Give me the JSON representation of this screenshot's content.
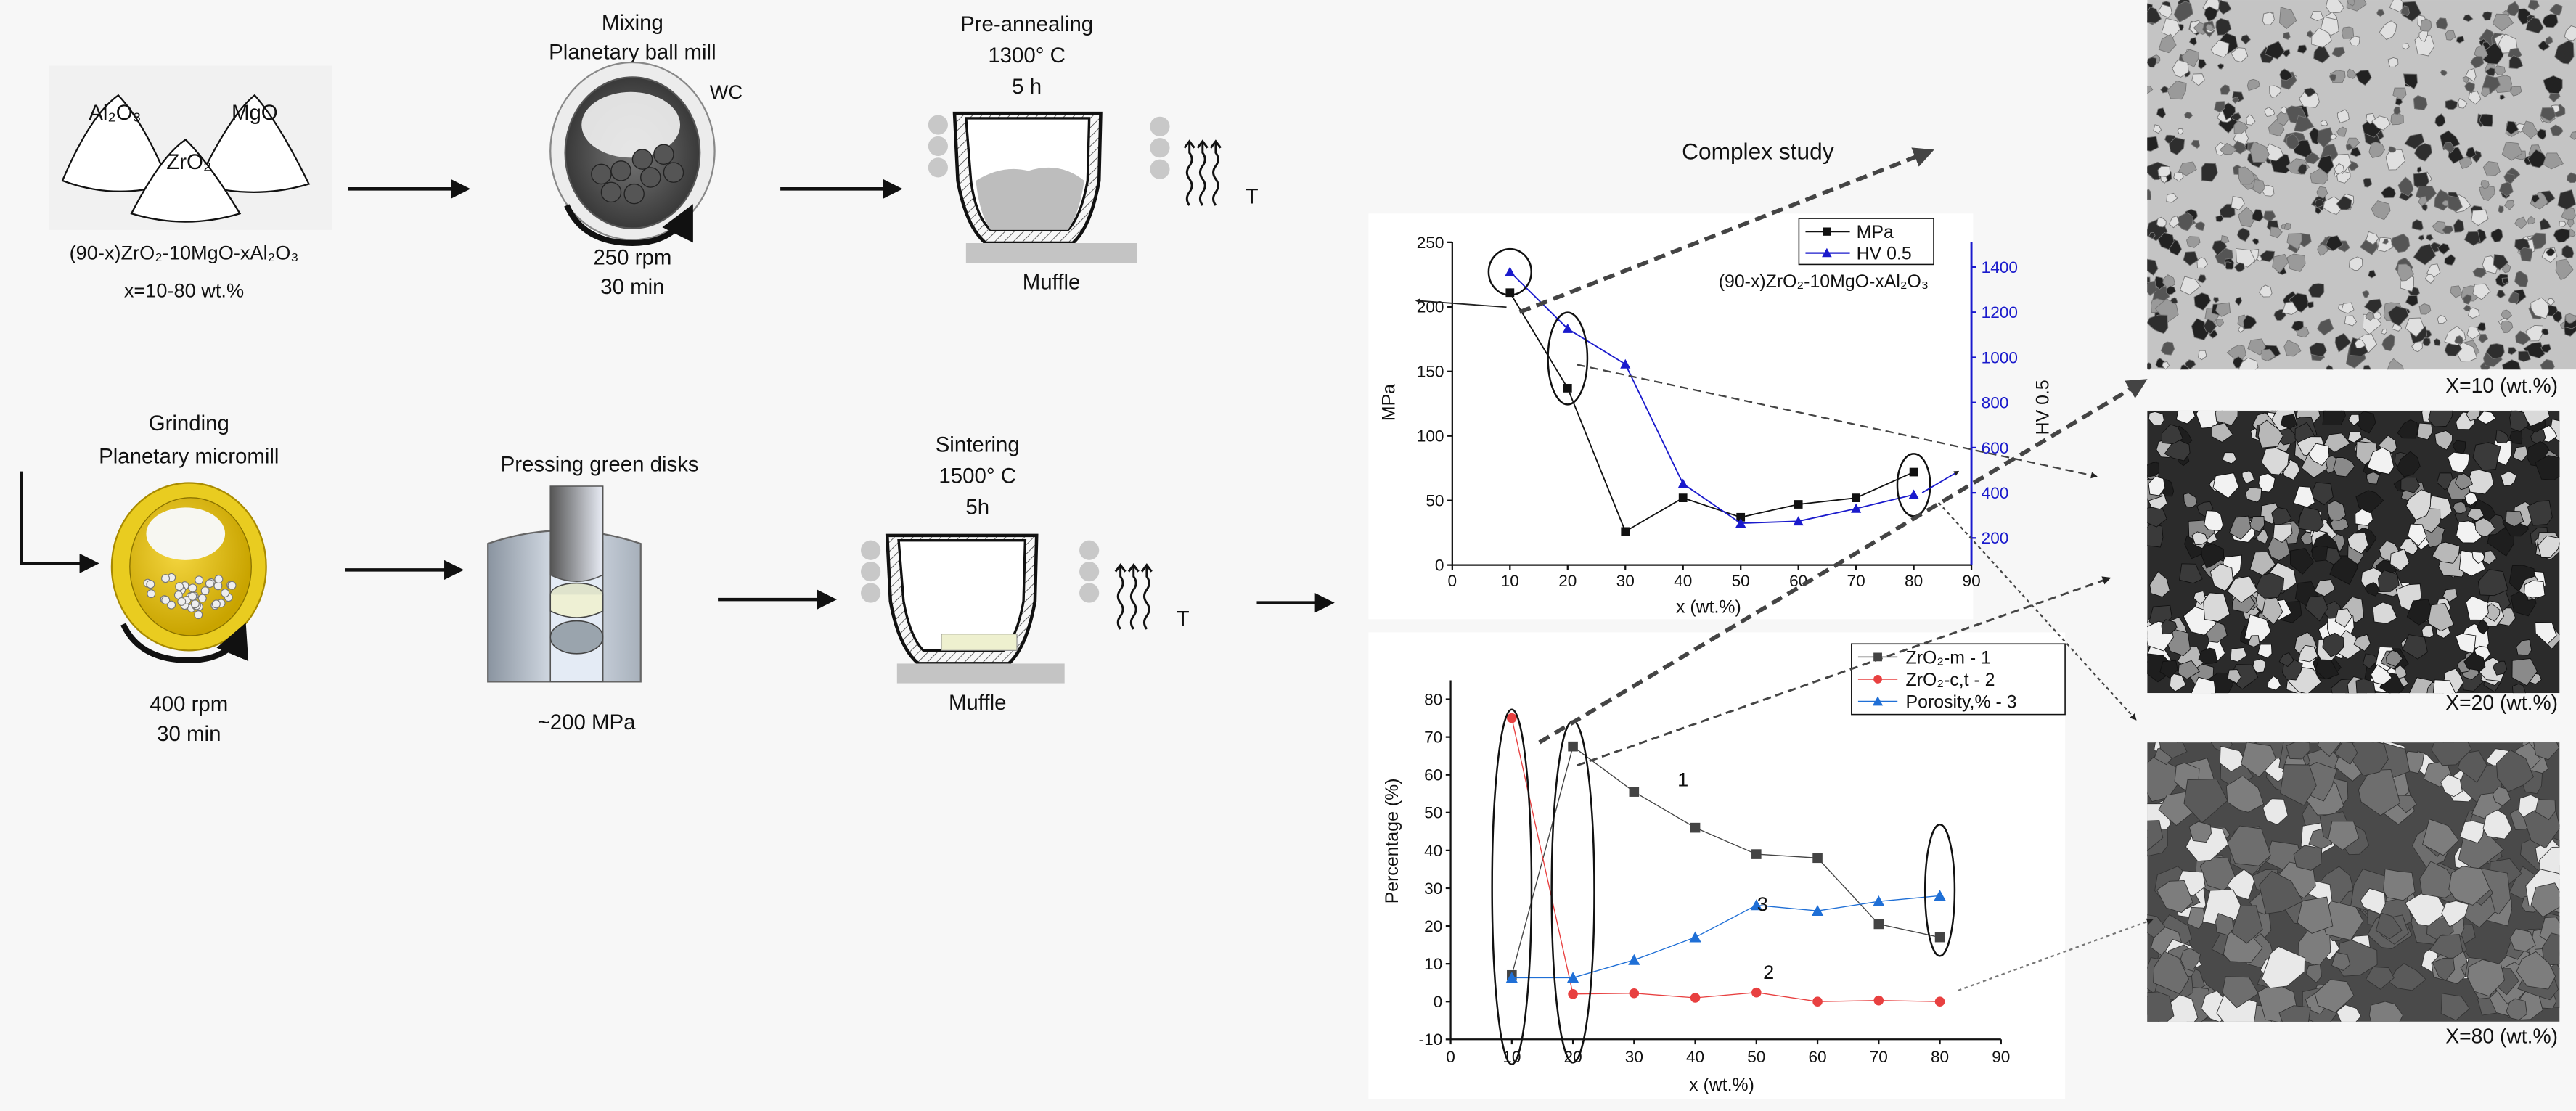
{
  "process": {
    "powders": {
      "al2o3": "Al₂O₃",
      "mgo": "MgO",
      "zro2": "ZrO₂",
      "formula": "(90-x)ZrO₂-10MgO-xAl₂O₃",
      "range": "x=10-80 wt.%"
    },
    "mixing": {
      "title": "Mixing",
      "device": "Planetary ball mill",
      "jar": "WC",
      "speed": "250 rpm",
      "time": "30 min"
    },
    "preannealing": {
      "title": "Pre-annealing",
      "temperature": "1300° C",
      "time": "5 h",
      "furnace": "Muffle",
      "heat": "T"
    },
    "grinding": {
      "title": "Grinding",
      "device": "Planetary micromill",
      "speed": "400 rpm",
      "time": "30 min"
    },
    "pressing": {
      "title": "Pressing green disks",
      "pressure": "~200 MPa"
    },
    "sintering": {
      "title": "Sintering",
      "temperature": "1500° C",
      "time": "5h",
      "furnace": "Muffle",
      "heat": "T"
    },
    "complex_study": "Complex study"
  },
  "micrographs": [
    {
      "label": "X=10 (wt.%)"
    },
    {
      "label": "X=20 (wt.%)"
    },
    {
      "label": "X=80 (wt.%)"
    }
  ],
  "chart_data": [
    {
      "type": "line",
      "title": "",
      "annotation": "(90-x)ZrO₂-10MgO-xAl₂O₃",
      "xlabel": "x (wt.%)",
      "ylabel": "MPa",
      "y2label": "HV 0.5",
      "xlim": [
        0,
        90
      ],
      "ylim": [
        0,
        250
      ],
      "y2lim": [
        80,
        1510
      ],
      "x_ticks": [
        0,
        10,
        20,
        30,
        40,
        50,
        60,
        70,
        80,
        90
      ],
      "y_ticks": [
        0,
        50,
        100,
        150,
        200,
        250
      ],
      "y2_ticks": [
        200,
        400,
        600,
        800,
        1000,
        1200,
        1400
      ],
      "legend": "top-right",
      "x": [
        10,
        20,
        30,
        40,
        50,
        60,
        70,
        80
      ],
      "series": [
        {
          "name": "MPa",
          "axis": "left",
          "color": "#111111",
          "marker": "square",
          "values": [
            211,
            137,
            26,
            52,
            37,
            47,
            52,
            72
          ]
        },
        {
          "name": "HV 0.5",
          "axis": "right",
          "color": "#1a1acc",
          "marker": "triangle",
          "values": [
            1379,
            1127,
            970,
            440,
            265,
            274,
            330,
            392
          ]
        }
      ]
    },
    {
      "type": "line",
      "title": "",
      "xlabel": "x (wt.%)",
      "ylabel": "Percentage (%)",
      "xlim": [
        0,
        90
      ],
      "ylim": [
        -10,
        85
      ],
      "x_ticks": [
        0,
        10,
        20,
        30,
        40,
        50,
        60,
        70,
        80,
        90
      ],
      "y_ticks": [
        -10,
        0,
        10,
        20,
        30,
        40,
        50,
        60,
        70,
        80
      ],
      "legend": "top-right",
      "x": [
        10,
        20,
        30,
        40,
        50,
        60,
        70,
        80
      ],
      "series": [
        {
          "name": "ZrO₂-m - 1",
          "color": "#444444",
          "marker": "square",
          "values": [
            7,
            67.5,
            55.5,
            46,
            39,
            38,
            20.5,
            17
          ]
        },
        {
          "name": "ZrO₂-c,t - 2",
          "color": "#e84040",
          "marker": "circle",
          "values": [
            75,
            2,
            2.2,
            1,
            2.4,
            0,
            0.3,
            0
          ]
        },
        {
          "name": "Porosity,% - 3",
          "color": "#1f6fd6",
          "marker": "triangle",
          "values": [
            6.3,
            6.3,
            11,
            17,
            25.5,
            24,
            26.5,
            28
          ]
        }
      ],
      "curve_labels": [
        {
          "text": "1",
          "x": 38,
          "y": 57
        },
        {
          "text": "3",
          "x": 51,
          "y": 24
        },
        {
          "text": "2",
          "x": 52,
          "y": 6
        }
      ]
    }
  ]
}
